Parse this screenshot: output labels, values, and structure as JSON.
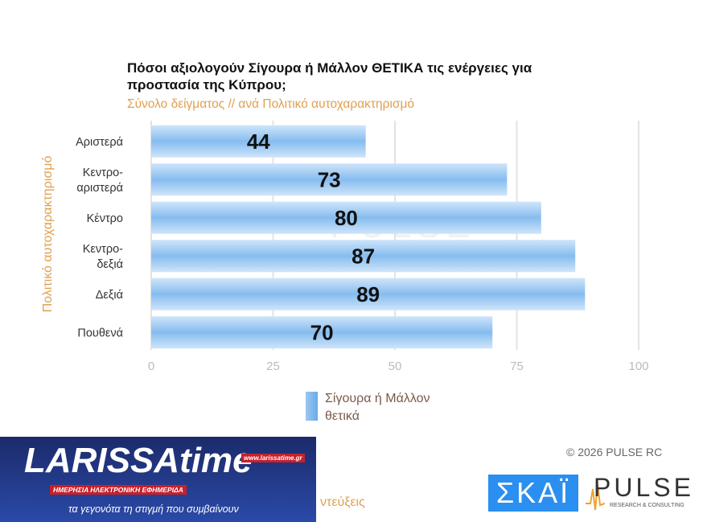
{
  "chart_data": {
    "type": "bar",
    "orientation": "horizontal",
    "title": "Πόσοι αξιολογούν Σίγουρα ή Μάλλον ΘΕΤΙΚΑ τις ενέργειες για προστασία της Κύπρου;",
    "subtitle": "Σύνολο δείγματος // ανά Πολιτικό αυτοχαρακτηρισμό",
    "ylabel": "Πολιτικό αυτοχαρακτηρισμό",
    "xlabel": "",
    "categories": [
      "Αριστερά",
      "Κεντρο-\nαριστερά",
      "Κέντρο",
      "Κεντρο-\nδεξιά",
      "Δεξιά",
      "Πουθενά"
    ],
    "series": [
      {
        "name": "Σίγουρα ή Μάλλον θετικά",
        "values": [
          44,
          73,
          80,
          87,
          89,
          70
        ],
        "color": "#8cc0f0"
      }
    ],
    "xlim": [
      0,
      100
    ],
    "xticks": [
      "0",
      "25",
      "50",
      "75",
      "100"
    ],
    "grid": true,
    "legend": "bottom"
  },
  "footer": {
    "copyright": "©  2026  PULSE RC",
    "skai": "ΣΚΑΪ",
    "pulse": "PULSE",
    "pulse_sub": "RESEARCH & CONSULTING",
    "cut_text": "ντεύξεις"
  },
  "watermark": "PULSE",
  "larissatime": {
    "logo": "LARISSAtime",
    "url": "www.larissatime.gr",
    "sub": "ΗΜΕΡΗΣΙΑ ΗΛΕΚΤΡΟΝΙΚΗ ΕΦΗΜΕΡΙΔΑ",
    "tagline": "τα γεγονότα τη στιγμή που συμβαίνουν"
  }
}
